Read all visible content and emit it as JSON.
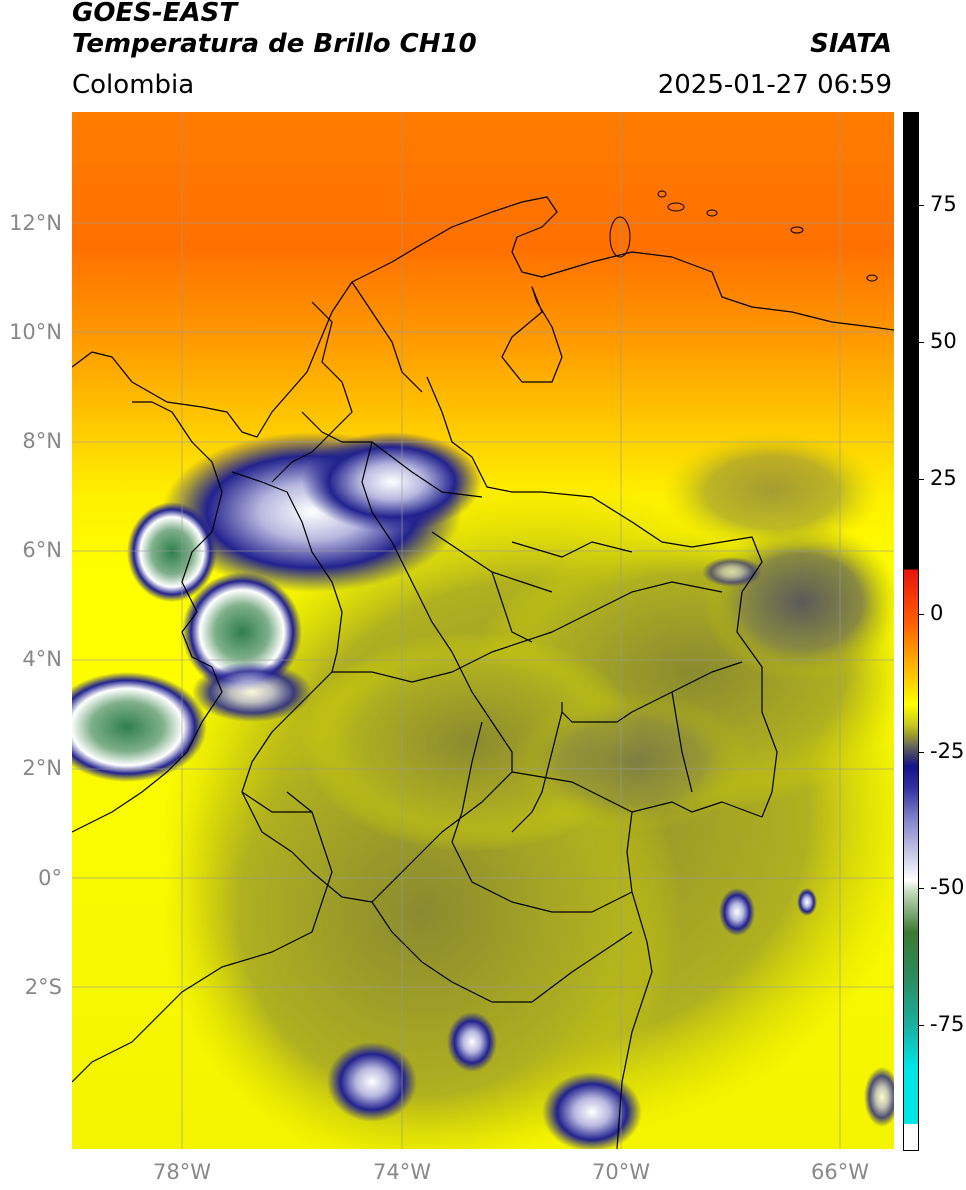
{
  "header": {
    "title_line1": "GOES-EAST",
    "title_line2": "Temperatura de Brillo CH10",
    "brand": "SIATA",
    "region": "Colombia",
    "timestamp": "2025-01-27 06:59"
  },
  "axes": {
    "lat_labels": [
      "12°N",
      "10°N",
      "8°N",
      "6°N",
      "4°N",
      "2°N",
      "0°",
      "2°S"
    ],
    "lon_labels": [
      "78°W",
      "74°W",
      "70°W",
      "66°W"
    ]
  },
  "colorbar": {
    "tick_labels": [
      "75",
      "50",
      "25",
      "0",
      "-25",
      "-50",
      "-75"
    ],
    "colors": {
      "black": "#000000",
      "red": "#e8140c",
      "orange": "#ff8c00",
      "yellow": "#ffff00",
      "olive": "#9a9a2a",
      "gray": "#5a5a5a",
      "navy": "#14148a",
      "white": "#ffffff",
      "green": "#3c7a32",
      "teal": "#1ab0a0",
      "cyan": "#00e5e5"
    }
  }
}
